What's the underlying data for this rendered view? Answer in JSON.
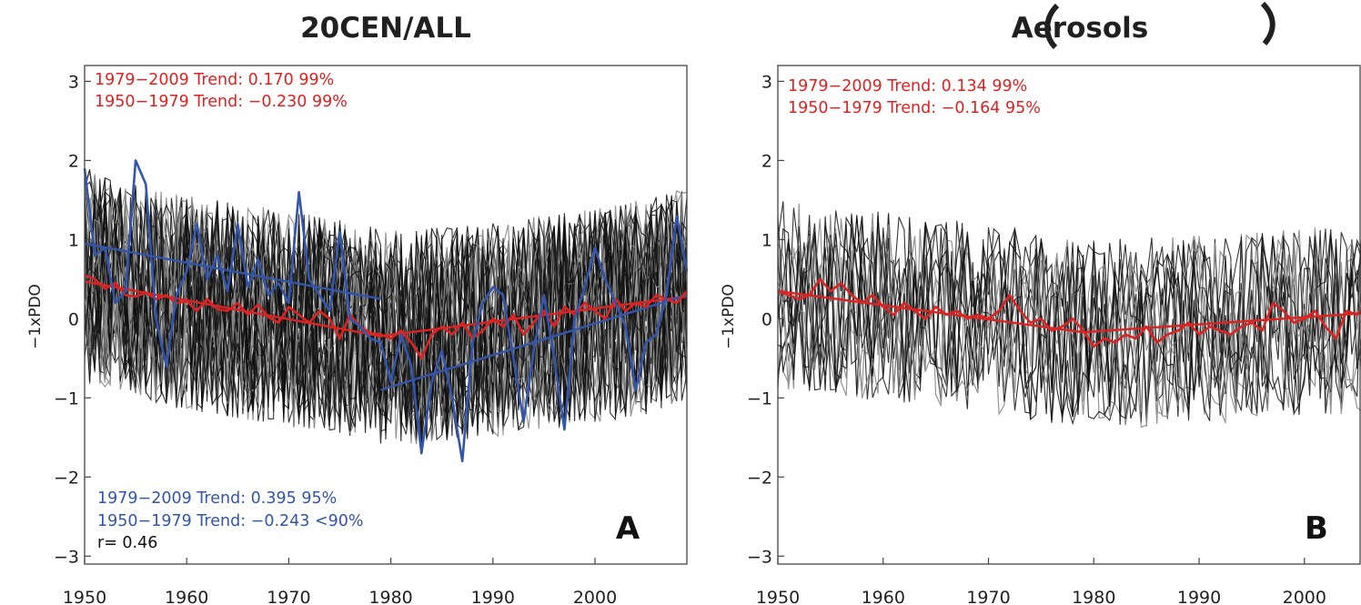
{
  "colors": {
    "ensemble_dark": "#111111",
    "ensemble_light": "#8a8a8a",
    "model_mean": "#dd2222",
    "observed": "#3355aa",
    "r_text": "#111111"
  },
  "chart_data": [
    {
      "type": "line",
      "title": "20CEN/ALL",
      "ylabel": "−1xPDO",
      "xlim": [
        1950,
        2009
      ],
      "ylim": [
        -3.1,
        3.2
      ],
      "x_ticks": [
        "1950",
        "1960",
        "1970",
        "1980",
        "1990",
        "2000"
      ],
      "y_ticks": [
        "3",
        "2",
        "1",
        "0",
        "−1",
        "−2",
        "−3"
      ],
      "panel_label": "A",
      "legend_placement": "none",
      "annotations": [
        {
          "text": "1979−2009 Trend:  0.170 99%",
          "color": "#dd2222",
          "corner": "top-left"
        },
        {
          "text": "1950−1979 Trend: −0.230 99%",
          "color": "#dd2222",
          "corner": "top-left"
        },
        {
          "text": "1979−2009 Trend:  0.395 95%",
          "color": "#3355aa",
          "corner": "bottom-left"
        },
        {
          "text": "1950−1979 Trend: −0.243 <90%",
          "color": "#3355aa",
          "corner": "bottom-left"
        },
        {
          "text": "r=  0.46",
          "color": "#111111",
          "corner": "bottom-left"
        }
      ],
      "ensemble": {
        "members": 36,
        "mean_path": [
          [
            1950,
            0.55
          ],
          [
            1955,
            0.35
          ],
          [
            1960,
            0.2
          ],
          [
            1965,
            0.1
          ],
          [
            1970,
            0.0
          ],
          [
            1975,
            -0.1
          ],
          [
            1980,
            -0.25
          ],
          [
            1985,
            -0.2
          ],
          [
            1990,
            -0.15
          ],
          [
            1995,
            -0.05
          ],
          [
            2000,
            0.05
          ],
          [
            2005,
            0.15
          ],
          [
            2009,
            0.3
          ]
        ],
        "spread": 0.85
      },
      "series": [
        {
          "name": "",
          "color": "#dd2222",
          "x": [
            1950,
            1951,
            1952,
            1953,
            1954,
            1955,
            1956,
            1957,
            1958,
            1959,
            1960,
            1961,
            1962,
            1963,
            1964,
            1965,
            1966,
            1967,
            1968,
            1969,
            1970,
            1971,
            1972,
            1973,
            1974,
            1975,
            1976,
            1977,
            1978,
            1979,
            1980,
            1981,
            1982,
            1983,
            1984,
            1985,
            1986,
            1987,
            1988,
            1989,
            1990,
            1991,
            1992,
            1993,
            1994,
            1995,
            1996,
            1997,
            1998,
            1999,
            2000,
            2001,
            2002,
            2003,
            2004,
            2005,
            2006,
            2007,
            2008,
            2009
          ],
          "values": [
            0.55,
            0.5,
            0.38,
            0.45,
            0.3,
            0.28,
            0.33,
            0.25,
            0.3,
            0.2,
            0.22,
            0.1,
            0.25,
            0.12,
            0.1,
            0.2,
            0.05,
            0.18,
            0.02,
            -0.05,
            0.15,
            0.05,
            -0.05,
            0.1,
            0.0,
            -0.25,
            0.05,
            -0.1,
            -0.18,
            -0.2,
            -0.25,
            -0.15,
            -0.3,
            -0.5,
            -0.2,
            -0.1,
            -0.2,
            -0.05,
            -0.25,
            -0.15,
            0.0,
            -0.1,
            0.05,
            -0.2,
            -0.05,
            0.1,
            -0.1,
            0.15,
            0.05,
            0.2,
            0.1,
            0.0,
            0.25,
            0.1,
            0.2,
            0.15,
            0.3,
            0.25,
            0.2,
            0.35
          ]
        },
        {
          "name": "",
          "color": "#3355aa",
          "x": [
            1950,
            1951,
            1952,
            1953,
            1954,
            1955,
            1956,
            1957,
            1958,
            1959,
            1960,
            1961,
            1962,
            1963,
            1964,
            1965,
            1966,
            1967,
            1968,
            1969,
            1970,
            1971,
            1972,
            1973,
            1974,
            1975,
            1976,
            1977,
            1978,
            1979,
            1980,
            1981,
            1982,
            1983,
            1984,
            1985,
            1986,
            1987,
            1988,
            1989,
            1990,
            1991,
            1992,
            1993,
            1994,
            1995,
            1996,
            1997,
            1998,
            1999,
            2000,
            2001,
            2002,
            2003,
            2004,
            2005,
            2006,
            2007,
            2008,
            2009
          ],
          "values": [
            1.9,
            0.8,
            0.9,
            0.2,
            0.35,
            2.0,
            1.7,
            0.0,
            -0.6,
            0.3,
            0.6,
            1.2,
            0.5,
            0.8,
            0.35,
            1.2,
            0.4,
            0.75,
            0.3,
            0.45,
            0.2,
            1.6,
            0.5,
            0.3,
            0.1,
            1.1,
            0.0,
            -0.1,
            -0.25,
            -0.3,
            -0.8,
            -0.2,
            -0.6,
            -1.7,
            -0.8,
            -0.4,
            -1.0,
            -1.8,
            -0.3,
            0.2,
            0.4,
            0.3,
            -0.5,
            -1.3,
            -0.4,
            0.3,
            -0.5,
            -1.4,
            0.0,
            0.4,
            0.9,
            0.5,
            0.2,
            -0.1,
            -0.9,
            -0.3,
            -0.2,
            0.3,
            1.3,
            0.6
          ]
        }
      ],
      "trend_lines": [
        {
          "color": "#dd2222",
          "x0": 1950,
          "y0": 0.47,
          "x1": 1979,
          "y1": -0.22
        },
        {
          "color": "#dd2222",
          "x0": 1979,
          "y0": -0.22,
          "x1": 2009,
          "y1": 0.28
        },
        {
          "color": "#3355aa",
          "x0": 1950,
          "y0": 0.95,
          "x1": 1979,
          "y1": 0.25
        },
        {
          "color": "#3355aa",
          "x0": 1979,
          "y0": -0.9,
          "x1": 2009,
          "y1": 0.3
        }
      ]
    },
    {
      "type": "line",
      "title": "Aerosols",
      "ylabel": "−1xPDO",
      "xlim": [
        1950,
        2009
      ],
      "ylim": [
        -3.1,
        3.2
      ],
      "x_ticks": [
        "1950",
        "1960",
        "1970",
        "1980",
        "1990",
        "2000"
      ],
      "y_ticks": [
        "3",
        "2",
        "1",
        "0",
        "−1",
        "−2",
        "−3"
      ],
      "panel_label": "B",
      "legend_placement": "none",
      "annotations": [
        {
          "text": "1979−2009 Trend:  0.134 99%",
          "color": "#dd2222",
          "corner": "top-left"
        },
        {
          "text": "1950−1979 Trend: −0.164 95%",
          "color": "#dd2222",
          "corner": "top-left"
        }
      ],
      "ensemble": {
        "members": 14,
        "mean_path": [
          [
            1950,
            0.3
          ],
          [
            1960,
            0.15
          ],
          [
            1970,
            0.0
          ],
          [
            1980,
            -0.2
          ],
          [
            1990,
            -0.15
          ],
          [
            2000,
            -0.05
          ],
          [
            2009,
            0.05
          ]
        ],
        "spread": 0.75
      },
      "series": [
        {
          "name": "",
          "color": "#dd2222",
          "x": [
            1950,
            1951,
            1952,
            1953,
            1954,
            1955,
            1956,
            1957,
            1958,
            1959,
            1960,
            1961,
            1962,
            1963,
            1964,
            1965,
            1966,
            1967,
            1968,
            1969,
            1970,
            1971,
            1972,
            1973,
            1974,
            1975,
            1976,
            1977,
            1978,
            1979,
            1980,
            1981,
            1982,
            1983,
            1984,
            1985,
            1986,
            1987,
            1988,
            1989,
            1990,
            1991,
            1992,
            1993,
            1994,
            1995,
            1996,
            1997,
            1998,
            1999,
            2000,
            2001,
            2002,
            2003,
            2004,
            2005,
            2006,
            2007,
            2008,
            2009
          ],
          "values": [
            0.35,
            0.3,
            0.25,
            0.3,
            0.5,
            0.35,
            0.45,
            0.3,
            0.2,
            0.3,
            0.15,
            0.05,
            0.2,
            0.1,
            0.0,
            0.15,
            0.05,
            0.1,
            0.0,
            0.05,
            0.0,
            0.1,
            0.3,
            0.1,
            -0.05,
            0.0,
            -0.15,
            -0.1,
            0.0,
            -0.15,
            -0.35,
            -0.25,
            -0.3,
            -0.2,
            -0.25,
            -0.1,
            -0.3,
            -0.2,
            -0.15,
            -0.05,
            -0.2,
            -0.1,
            -0.15,
            -0.2,
            -0.1,
            -0.05,
            -0.15,
            0.2,
            0.1,
            -0.05,
            0.0,
            0.1,
            -0.1,
            -0.25,
            0.1,
            0.05,
            0.2,
            0.0,
            -0.15,
            0.1
          ]
        }
      ],
      "trend_lines": [
        {
          "color": "#dd2222",
          "x0": 1950,
          "y0": 0.35,
          "x1": 1979,
          "y1": -0.17
        },
        {
          "color": "#dd2222",
          "x0": 1979,
          "y0": -0.17,
          "x1": 2009,
          "y1": 0.1
        }
      ]
    }
  ]
}
